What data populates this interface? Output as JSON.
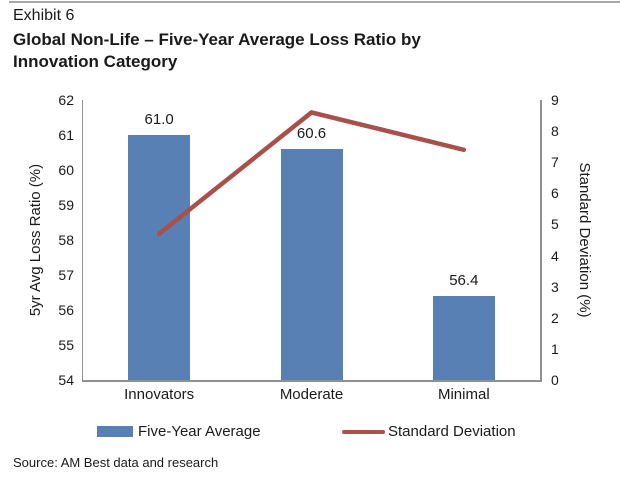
{
  "page": {
    "exhibit_label": "Exhibit 6",
    "title_line1": "Global Non-Life – Five-Year Average Loss Ratio by",
    "title_line2": "Innovation Category",
    "source": "Source: AM Best data and research"
  },
  "chart_data": {
    "type": "combo-bar-line",
    "categories": [
      "Innovators",
      "Moderate",
      "Minimal"
    ],
    "series": [
      {
        "name": "Five-Year Average",
        "chart_type": "bar",
        "axis": "left",
        "values": [
          61.0,
          60.6,
          56.4
        ],
        "point_labels": [
          "61.0",
          "60.6",
          "56.4"
        ],
        "color": "#5880B4"
      },
      {
        "name": "Standard Deviation",
        "chart_type": "line",
        "axis": "right",
        "values": [
          4.7,
          8.6,
          7.4
        ],
        "color": "#A9504B"
      }
    ],
    "left_axis": {
      "label": "5yr Avg Loss Ratio (%)",
      "min": 54,
      "max": 62,
      "tick_step": 1
    },
    "right_axis": {
      "label": "Standard Deviation (%)",
      "min": 0,
      "max": 9,
      "tick_step": 1
    },
    "grid": false,
    "legend_position": "bottom"
  }
}
